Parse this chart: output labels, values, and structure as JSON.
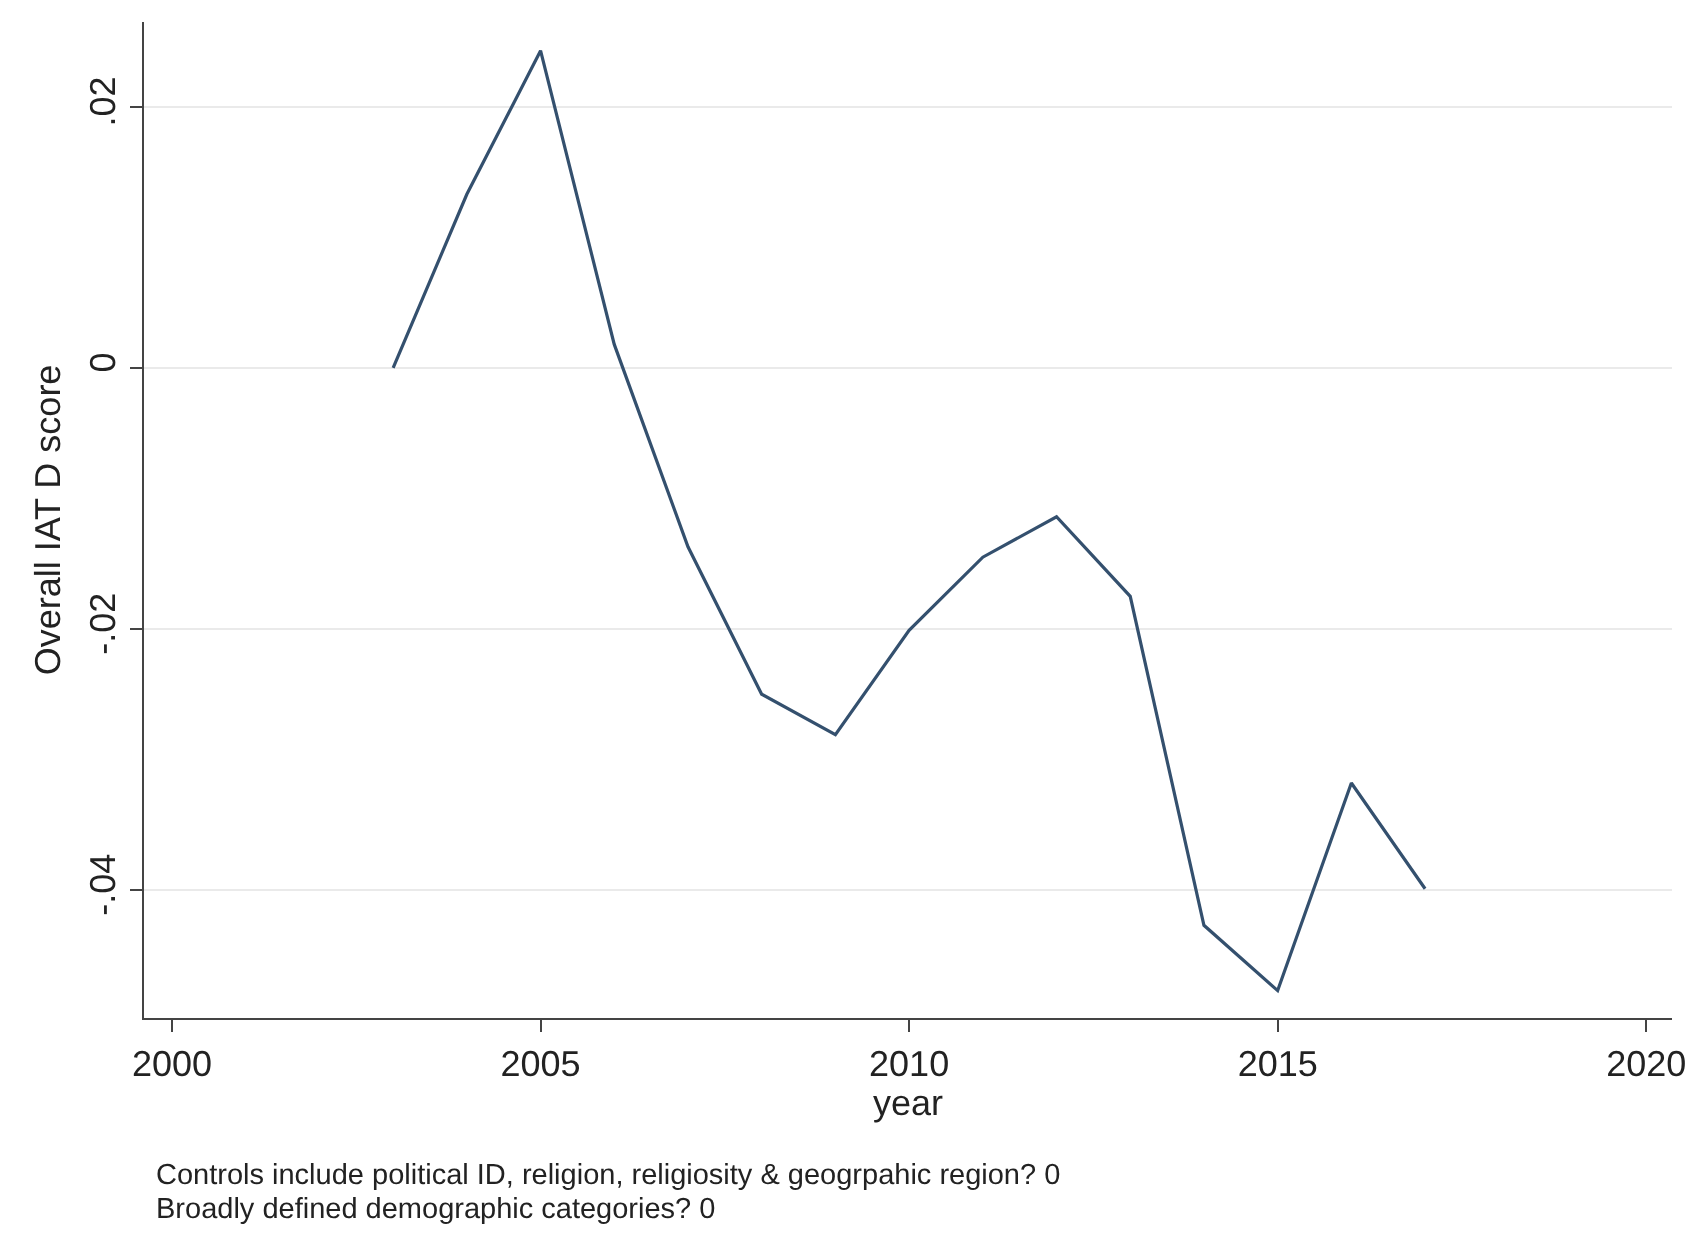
{
  "chart_data": {
    "type": "line",
    "xlabel": "year",
    "ylabel": "Overall IAT D score",
    "annotations": [
      "Controls include political ID, religion, religiosity & geogrpahic region? 0",
      "Broadly defined demographic categories? 0"
    ],
    "x": [
      2003,
      2004,
      2005,
      2006,
      2007,
      2008,
      2009,
      2010,
      2011,
      2012,
      2013,
      2014,
      2015,
      2016,
      2017
    ],
    "series": [
      {
        "color": "#34506e",
        "values": [
          0.0,
          0.0133,
          0.0243,
          0.0018,
          -0.0137,
          -0.025,
          -0.0281,
          -0.0201,
          -0.0145,
          -0.0114,
          -0.0175,
          -0.0427,
          -0.0477,
          -0.0318,
          -0.0399
        ]
      }
    ],
    "xlim": [
      1999.62,
      2020.35
    ],
    "ylim": [
      -0.0498,
      0.0265
    ],
    "xticks": [
      2000,
      2005,
      2010,
      2015,
      2020
    ],
    "yticks": [
      {
        "value": -0.04,
        "label": "-.04"
      },
      {
        "value": -0.02,
        "label": "-.02"
      },
      0,
      {
        "value": 0.02,
        "label": ".02"
      }
    ],
    "grid": "y",
    "line_style": "solid"
  }
}
